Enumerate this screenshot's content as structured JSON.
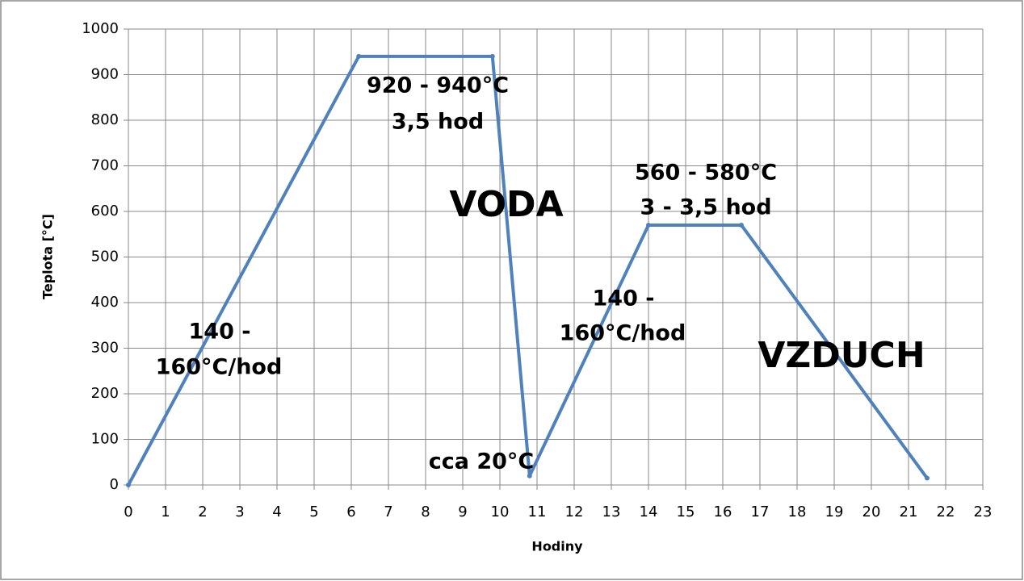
{
  "chart_data": {
    "type": "line",
    "x_label": "Hodiny",
    "y_label": "Teplota [°C]",
    "series": [
      {
        "color": "#4f81bd",
        "x": [
          0,
          6.2,
          9.8,
          10.8,
          14,
          16.5,
          21.5
        ],
        "values": [
          0,
          940,
          940,
          20,
          570,
          570,
          15
        ]
      }
    ],
    "xlim": [
      0,
      23
    ],
    "xticks": [
      0,
      1,
      2,
      3,
      4,
      5,
      6,
      7,
      8,
      9,
      10,
      11,
      12,
      13,
      14,
      15,
      16,
      17,
      18,
      19,
      20,
      21,
      22,
      23
    ],
    "ylim": [
      0,
      1000
    ],
    "yticks": [
      0,
      100,
      200,
      300,
      400,
      500,
      600,
      700,
      800,
      900,
      1000
    ],
    "grid": true,
    "annotations": [
      "920 - 940°C",
      "3,5 hod",
      "VODA",
      "560 - 580°C",
      "3 - 3,5 hod",
      "140 -",
      "160°C/hod",
      "140 -",
      "160°C/hod",
      "cca 20°C",
      "VZDUCH"
    ]
  }
}
